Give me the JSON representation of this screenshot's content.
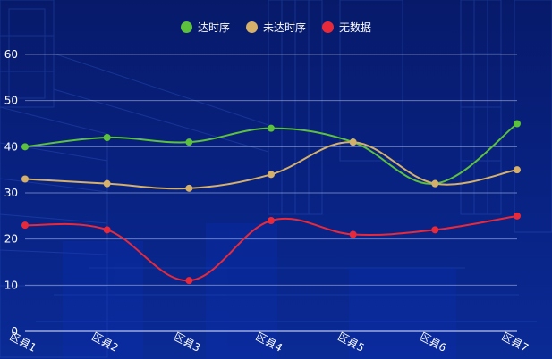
{
  "chart_data": {
    "type": "line",
    "categories": [
      "区县1",
      "区县2",
      "区县3",
      "区县4",
      "区县5",
      "区县6",
      "区县7"
    ],
    "series": [
      {
        "name": "达时序",
        "color": "#5cc13c",
        "values": [
          40,
          42,
          41,
          44,
          41,
          32,
          45
        ]
      },
      {
        "name": "未达时序",
        "color": "#d4b06a",
        "values": [
          33,
          32,
          31,
          34,
          41,
          32,
          35
        ]
      },
      {
        "name": "无数据",
        "color": "#e8293a",
        "values": [
          23,
          22,
          11,
          24,
          21,
          22,
          25
        ]
      }
    ],
    "y_ticks": [
      "0",
      "10",
      "20",
      "30",
      "40",
      "50",
      "60"
    ],
    "ylim": [
      0,
      60
    ],
    "grid": true,
    "smooth": true,
    "legend_position": "top-center"
  }
}
